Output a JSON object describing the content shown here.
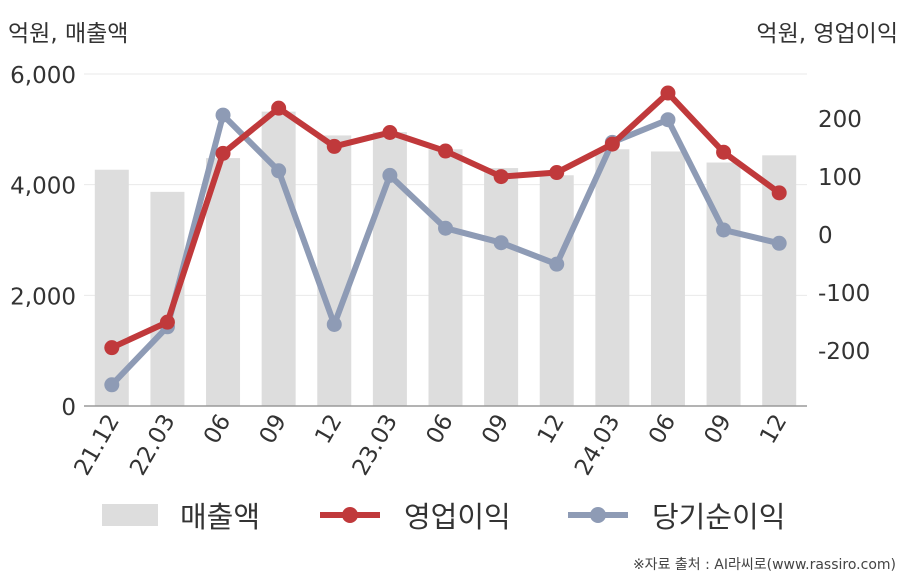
{
  "chart_data": {
    "type": "bar",
    "left_axis_title": "억원, 매출액",
    "right_axis_title": "억원, 영업이익",
    "categories": [
      "21.12",
      "22.03",
      "06",
      "09",
      "12",
      "23.03",
      "06",
      "09",
      "12",
      "24.03",
      "06",
      "09",
      "12"
    ],
    "left_axis": {
      "ylim": [
        0,
        6000
      ],
      "ticks": [
        0,
        2000,
        4000,
        6000
      ],
      "tick_labels": [
        "0",
        "2,000",
        "4,000",
        "6,000"
      ]
    },
    "right_axis": {
      "ylim": [
        -300,
        300
      ],
      "ticks": [
        -200,
        -100,
        0,
        100,
        200
      ],
      "tick_labels": [
        "-200",
        "-100",
        "0",
        "100",
        "200"
      ]
    },
    "series": [
      {
        "name": "매출액",
        "type": "bar",
        "axis": "left",
        "color": "#dddddd",
        "values": [
          4270,
          3870,
          4480,
          5320,
          4890,
          4950,
          4640,
          4300,
          4170,
          4640,
          4600,
          4400,
          4530
        ]
      },
      {
        "name": "영업이익",
        "type": "line",
        "axis": "right",
        "color": "#c0393b",
        "values": [
          -196,
          -152,
          139,
          217,
          151,
          175,
          143,
          99,
          106,
          155,
          243,
          141,
          71
        ]
      },
      {
        "name": "당기순이익",
        "type": "line",
        "axis": "right",
        "color": "#8e9bb5",
        "values": [
          -260,
          -160,
          205,
          109,
          -156,
          101,
          10,
          -15,
          -52,
          158,
          197,
          7,
          -16
        ]
      }
    ],
    "grid": true,
    "legend_position": "bottom"
  },
  "source": "※자료 출처 : AI라씨로(www.rassiro.com)"
}
